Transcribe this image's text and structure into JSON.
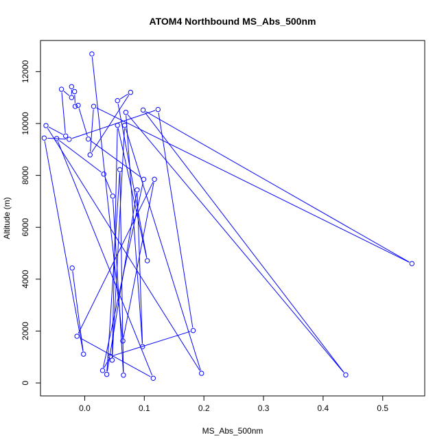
{
  "colors": {
    "series": "#0000ff",
    "axis": "#000000",
    "background": "#ffffff"
  },
  "chart_data": {
    "type": "line",
    "markers": "open-circle",
    "title": "ATOM4 Northbound MS_Abs_500nm",
    "xlabel": "MS_Abs_500nm",
    "ylabel": "Altitude (m)",
    "xlim": [
      -0.0742,
      0.5705
    ],
    "ylim": [
      -500,
      13200
    ],
    "xticks": [
      {
        "value": 0.0,
        "label": "0.0"
      },
      {
        "value": 0.1,
        "label": "0.1"
      },
      {
        "value": 0.2,
        "label": "0.2"
      },
      {
        "value": 0.3,
        "label": "0.3"
      },
      {
        "value": 0.4,
        "label": "0.4"
      },
      {
        "value": 0.5,
        "label": "0.5"
      }
    ],
    "yticks": [
      {
        "value": 0,
        "label": "0"
      },
      {
        "value": 2000,
        "label": "2000"
      },
      {
        "value": 4000,
        "label": "4000"
      },
      {
        "value": 6000,
        "label": "6000"
      },
      {
        "value": 8000,
        "label": "8000"
      },
      {
        "value": 10000,
        "label": "10000"
      },
      {
        "value": 12000,
        "label": "12000"
      }
    ],
    "grid": false,
    "legend": "none",
    "points": [
      {
        "x": 0.012,
        "y": 12680
      },
      {
        "x": 0.064,
        "y": 1620
      },
      {
        "x": 0.117,
        "y": 7850
      },
      {
        "x": -0.013,
        "y": 1800
      },
      {
        "x": 0.115,
        "y": 180
      },
      {
        "x": -0.047,
        "y": 9420
      },
      {
        "x": 0.032,
        "y": 8050
      },
      {
        "x": 0.047,
        "y": 7200
      },
      {
        "x": 0.065,
        "y": 300
      },
      {
        "x": 0.059,
        "y": 8220
      },
      {
        "x": 0.037,
        "y": 330
      },
      {
        "x": 0.088,
        "y": 7440
      },
      {
        "x": 0.097,
        "y": 1400
      },
      {
        "x": 0.069,
        "y": 10430
      },
      {
        "x": 0.438,
        "y": 310
      },
      {
        "x": 0.098,
        "y": 10520
      },
      {
        "x": 0.549,
        "y": 4600
      },
      {
        "x": 0.015,
        "y": 10660
      },
      {
        "x": 0.009,
        "y": 8790
      },
      {
        "x": 0.077,
        "y": 11200
      },
      {
        "x": 0.055,
        "y": 10880
      },
      {
        "x": 0.105,
        "y": 4710
      },
      {
        "x": 0.055,
        "y": 9930
      },
      {
        "x": 0.046,
        "y": 880
      },
      {
        "x": 0.067,
        "y": 9930
      },
      {
        "x": 0.196,
        "y": 370
      },
      {
        "x": -0.065,
        "y": 9920
      },
      {
        "x": -0.032,
        "y": 9520
      },
      {
        "x": -0.039,
        "y": 11320
      },
      {
        "x": -0.022,
        "y": 11000
      },
      {
        "x": -0.022,
        "y": 11420
      },
      {
        "x": -0.017,
        "y": 11230
      },
      {
        "x": -0.016,
        "y": 10660
      },
      {
        "x": -0.011,
        "y": 10700
      },
      {
        "x": 0.006,
        "y": 9400
      },
      {
        "x": 0.099,
        "y": 7850
      },
      {
        "x": 0.03,
        "y": 480
      },
      {
        "x": 0.043,
        "y": 1020
      },
      {
        "x": 0.182,
        "y": 2020
      },
      {
        "x": 0.123,
        "y": 10540
      },
      {
        "x": -0.026,
        "y": 9390
      },
      {
        "x": -0.068,
        "y": 9440
      },
      {
        "x": -0.002,
        "y": 1110
      },
      {
        "x": -0.021,
        "y": 4430
      }
    ]
  }
}
